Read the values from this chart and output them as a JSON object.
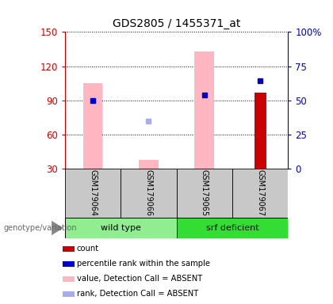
{
  "title": "GDS2805 / 1455371_at",
  "samples": [
    "GSM179064",
    "GSM179066",
    "GSM179065",
    "GSM179067"
  ],
  "groups": [
    {
      "name": "wild type",
      "color": "#90EE90",
      "start": 0,
      "end": 2
    },
    {
      "name": "srf deficient",
      "color": "#33DD33",
      "start": 2,
      "end": 4
    }
  ],
  "ylim": [
    30,
    150
  ],
  "yticks": [
    30,
    60,
    90,
    120,
    150
  ],
  "right_yticks": [
    0,
    25,
    50,
    75,
    100
  ],
  "right_ylim": [
    0,
    100
  ],
  "pink_bars": {
    "GSM179064": [
      30,
      105
    ],
    "GSM179066": [
      30,
      38
    ],
    "GSM179065": [
      30,
      133
    ],
    "GSM179067": null
  },
  "red_bars": {
    "GSM179067": [
      30,
      97
    ]
  },
  "blue_dots": {
    "GSM179064": 90,
    "GSM179065": 95,
    "GSM179067": 107
  },
  "light_blue_dots": {
    "GSM179066": 72
  },
  "pink_color": "#FFB6C1",
  "red_color": "#CC0000",
  "blue_color": "#0000CC",
  "light_blue_color": "#AAAAEE",
  "title_fontsize": 10,
  "label_color_left": "#CC0000",
  "label_color_right": "#0000BB",
  "legend_items": [
    {
      "label": "count",
      "color": "#CC0000"
    },
    {
      "label": "percentile rank within the sample",
      "color": "#0000CC"
    },
    {
      "label": "value, Detection Call = ABSENT",
      "color": "#FFB6C1"
    },
    {
      "label": "rank, Detection Call = ABSENT",
      "color": "#AAAAEE"
    }
  ]
}
